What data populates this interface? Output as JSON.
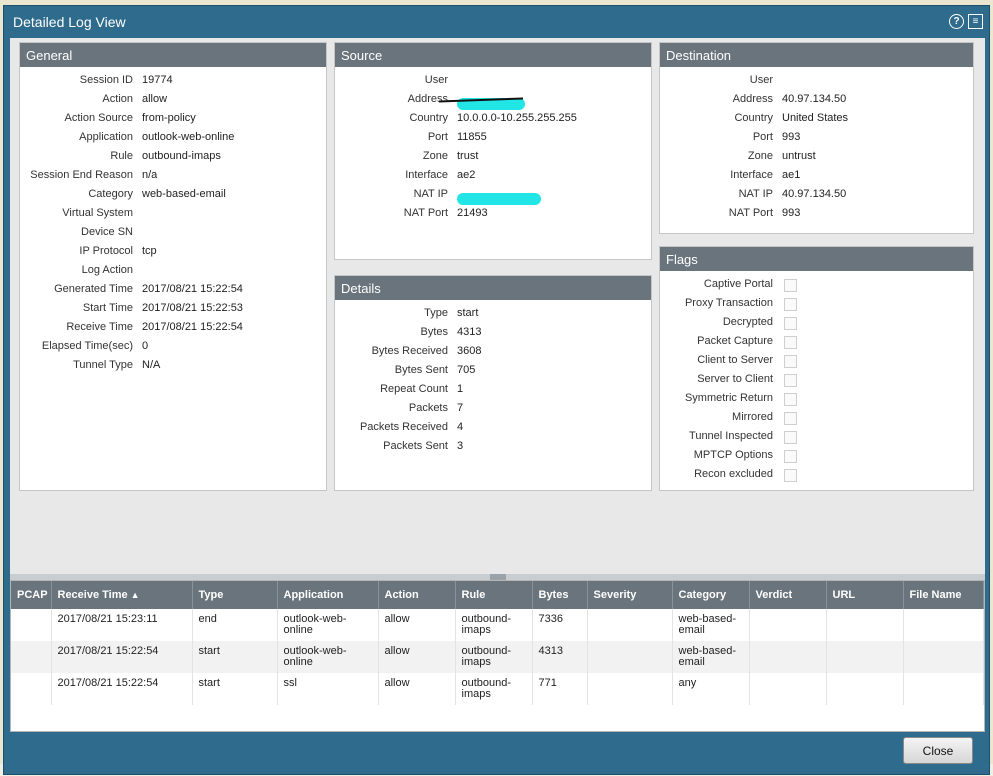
{
  "dialog": {
    "title": "Detailed Log View",
    "help_icon": "help-icon",
    "maximize_icon": "maximize-icon"
  },
  "general": {
    "header": "General",
    "rows": [
      {
        "k": "Session ID",
        "v": "19774"
      },
      {
        "k": "Action",
        "v": "allow"
      },
      {
        "k": "Action Source",
        "v": "from-policy"
      },
      {
        "k": "Application",
        "v": "outlook-web-online"
      },
      {
        "k": "Rule",
        "v": "outbound-imaps"
      },
      {
        "k": "Session End Reason",
        "v": "n/a"
      },
      {
        "k": "Category",
        "v": "web-based-email"
      },
      {
        "k": "Virtual System",
        "v": ""
      },
      {
        "k": "Device SN",
        "v": ""
      },
      {
        "k": "IP Protocol",
        "v": "tcp"
      },
      {
        "k": "Log Action",
        "v": ""
      },
      {
        "k": "Generated Time",
        "v": "2017/08/21 15:22:54"
      },
      {
        "k": "Start Time",
        "v": "2017/08/21 15:22:53"
      },
      {
        "k": "Receive Time",
        "v": "2017/08/21 15:22:54"
      },
      {
        "k": "Elapsed Time(sec)",
        "v": "0"
      },
      {
        "k": "Tunnel Type",
        "v": "N/A"
      }
    ]
  },
  "source": {
    "header": "Source",
    "rows": [
      {
        "k": "User",
        "v": ""
      },
      {
        "k": "Address",
        "v": ""
      },
      {
        "k": "Country",
        "v": "10.0.0.0-10.255.255.255"
      },
      {
        "k": "Port",
        "v": "11855"
      },
      {
        "k": "Zone",
        "v": "trust"
      },
      {
        "k": "Interface",
        "v": "ae2"
      },
      {
        "k": "NAT IP",
        "v": ""
      },
      {
        "k": "NAT Port",
        "v": "21493"
      }
    ]
  },
  "destination": {
    "header": "Destination",
    "rows": [
      {
        "k": "User",
        "v": ""
      },
      {
        "k": "Address",
        "v": "40.97.134.50"
      },
      {
        "k": "Country",
        "v": "United States"
      },
      {
        "k": "Port",
        "v": "993"
      },
      {
        "k": "Zone",
        "v": "untrust"
      },
      {
        "k": "Interface",
        "v": "ae1"
      },
      {
        "k": "NAT IP",
        "v": "40.97.134.50"
      },
      {
        "k": "NAT Port",
        "v": "993"
      }
    ]
  },
  "details": {
    "header": "Details",
    "rows": [
      {
        "k": "Type",
        "v": "start"
      },
      {
        "k": "Bytes",
        "v": "4313"
      },
      {
        "k": "Bytes Received",
        "v": "3608"
      },
      {
        "k": "Bytes Sent",
        "v": "705"
      },
      {
        "k": "Repeat Count",
        "v": "1"
      },
      {
        "k": "Packets",
        "v": "7"
      },
      {
        "k": "Packets Received",
        "v": "4"
      },
      {
        "k": "Packets Sent",
        "v": "3"
      }
    ]
  },
  "flags": {
    "header": "Flags",
    "items": [
      "Captive Portal",
      "Proxy Transaction",
      "Decrypted",
      "Packet Capture",
      "Client to Server",
      "Server to Client",
      "Symmetric Return",
      "Mirrored",
      "Tunnel Inspected",
      "MPTCP Options",
      "Recon excluded"
    ]
  },
  "table": {
    "columns": [
      "PCAP",
      "Receive Time",
      "Type",
      "Application",
      "Action",
      "Rule",
      "Bytes",
      "Severity",
      "Category",
      "Verdict",
      "URL",
      "File Name"
    ],
    "sort_icon": "▲",
    "rows": [
      [
        "",
        "2017/08/21 15:23:11",
        "end",
        "outlook-web-online",
        "allow",
        "outbound-imaps",
        "7336",
        "",
        "web-based-email",
        "",
        "",
        ""
      ],
      [
        "",
        "2017/08/21 15:22:54",
        "start",
        "outlook-web-online",
        "allow",
        "outbound-imaps",
        "4313",
        "",
        "web-based-email",
        "",
        "",
        ""
      ],
      [
        "",
        "2017/08/21 15:22:54",
        "start",
        "ssl",
        "allow",
        "outbound-imaps",
        "771",
        "",
        "any",
        "",
        "",
        ""
      ]
    ]
  },
  "footer": {
    "close_label": "Close"
  }
}
